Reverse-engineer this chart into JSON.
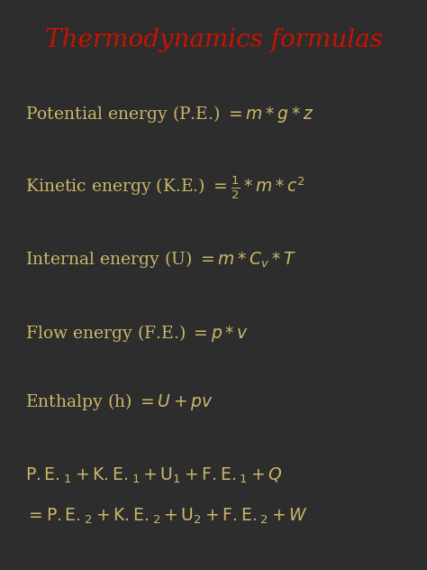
{
  "title": "Thermodynamics formulas",
  "title_color": "#cc1100",
  "background_color": "#2d2d2d",
  "text_color": "#ccb86a",
  "figsize": [
    4.74,
    6.32
  ],
  "dpi": 100,
  "title_fontsize": 20,
  "body_fontsize": 13.5
}
